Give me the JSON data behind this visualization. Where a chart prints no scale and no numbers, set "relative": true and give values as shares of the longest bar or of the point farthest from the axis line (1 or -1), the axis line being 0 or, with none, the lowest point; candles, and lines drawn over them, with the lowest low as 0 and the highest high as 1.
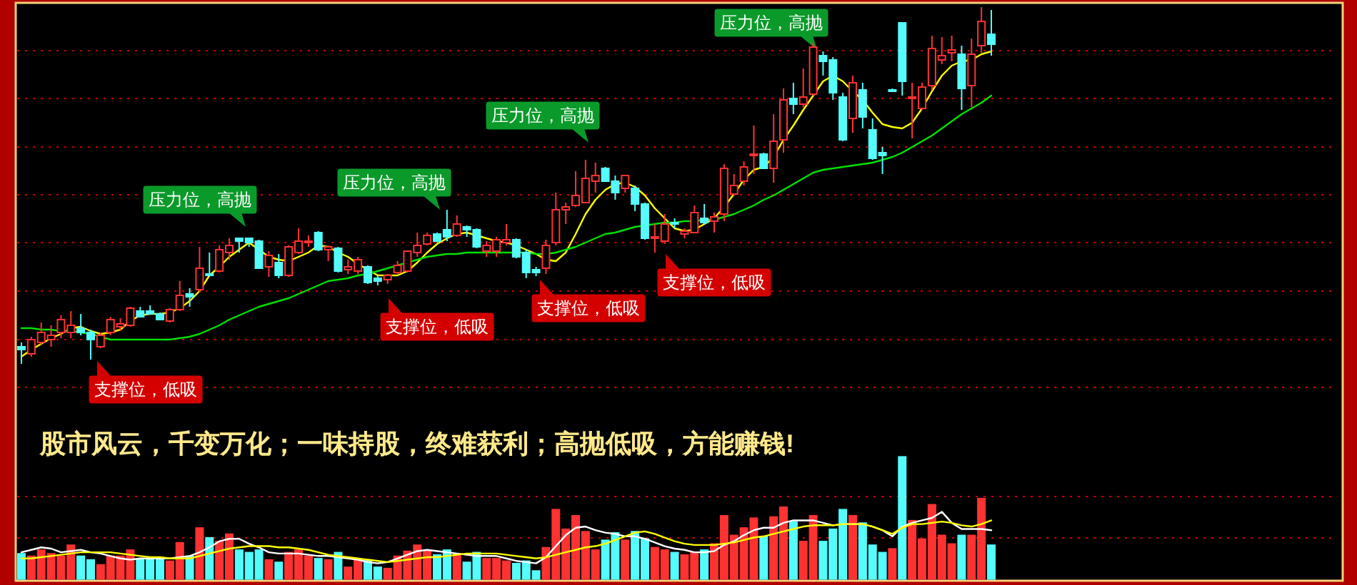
{
  "chart_data": [
    {
      "type": "candlestick",
      "relative": true,
      "ref_lines": [
        {
          "axis": "y",
          "value": 0.878,
          "color": "#c80000",
          "line_style": "dotted"
        },
        {
          "axis": "y",
          "value": 0.744,
          "color": "#c80000",
          "line_style": "dotted"
        },
        {
          "axis": "y",
          "value": 0.608,
          "color": "#c80000",
          "line_style": "dotted"
        },
        {
          "axis": "y",
          "value": 0.474,
          "color": "#c80000",
          "line_style": "dotted"
        },
        {
          "axis": "y",
          "value": 0.34,
          "color": "#c80000",
          "line_style": "dotted"
        },
        {
          "axis": "y",
          "value": 0.204,
          "color": "#c80000",
          "line_style": "dotted"
        },
        {
          "axis": "y",
          "value": 0.068,
          "color": "#c80000",
          "line_style": "dotted"
        },
        {
          "axis": "y",
          "value": -0.066,
          "color": "#c80000",
          "line_style": "dotted"
        }
      ],
      "categories": [
        null,
        null,
        null,
        null,
        null,
        null,
        null,
        null,
        null,
        null,
        null,
        null,
        null,
        null,
        null,
        null,
        null,
        null,
        null,
        null,
        null,
        null,
        null,
        null,
        null,
        null,
        null,
        null,
        null,
        null,
        null,
        null,
        null,
        null,
        null,
        null,
        null,
        null,
        null,
        null,
        null,
        null,
        null,
        null,
        null,
        null,
        null,
        null,
        null,
        null,
        null,
        null,
        null,
        null,
        null,
        null,
        null,
        null,
        null,
        null,
        null,
        null,
        null,
        null,
        null,
        null,
        null,
        null,
        null,
        null,
        null,
        null,
        null,
        null,
        null,
        null,
        null,
        null,
        null,
        null,
        null,
        null,
        null,
        null,
        null,
        null,
        null,
        null,
        null,
        null,
        null,
        null,
        null,
        null,
        null,
        null,
        null,
        null,
        null
      ],
      "ohlc": [
        [
          0.048,
          0.06,
          0,
          0.04
        ],
        [
          0.028,
          0.076,
          0.02,
          0.068
        ],
        [
          0.06,
          0.116,
          0.052,
          0.088
        ],
        [
          0.068,
          0.108,
          0.048,
          0.08
        ],
        [
          0.088,
          0.136,
          0.072,
          0.124
        ],
        [
          0.088,
          0.148,
          0.072,
          0.108
        ],
        [
          0.1,
          0.14,
          0.08,
          0.088
        ],
        [
          0.088,
          0.096,
          0.012,
          0.068
        ],
        [
          0.048,
          0.088,
          0.044,
          0.08
        ],
        [
          0.088,
          0.132,
          0.08,
          0.124
        ],
        [
          0.104,
          0.128,
          0.092,
          0.112
        ],
        [
          0.108,
          0.16,
          0.104,
          0.156
        ],
        [
          0.148,
          0.16,
          0.132,
          0.132
        ],
        [
          0.148,
          0.164,
          0.14,
          0.14
        ],
        [
          0.14,
          0.144,
          0.124,
          0.124
        ],
        [
          0.12,
          0.156,
          0.116,
          0.152
        ],
        [
          0.152,
          0.232,
          0.148,
          0.192
        ],
        [
          0.196,
          0.212,
          0.16,
          0.188
        ],
        [
          0.208,
          0.328,
          0.2,
          0.268
        ],
        [
          0.252,
          0.312,
          0.248,
          0.248
        ],
        [
          0.26,
          0.332,
          0.256,
          0.32
        ],
        [
          0.312,
          0.352,
          0.292,
          0.332
        ],
        [
          0.352,
          0.352,
          0.312,
          0.344
        ],
        [
          0.352,
          0.352,
          0.328,
          0.34
        ],
        [
          0.344,
          0.348,
          0.268,
          0.268
        ],
        [
          0.272,
          0.316,
          0.244,
          0.304
        ],
        [
          0.284,
          0.308,
          0.24,
          0.248
        ],
        [
          0.248,
          0.332,
          0.244,
          0.328
        ],
        [
          0.312,
          0.38,
          0.308,
          0.344
        ],
        [
          0.34,
          0.36,
          0.328,
          0.344
        ],
        [
          0.368,
          0.372,
          0.316,
          0.32
        ],
        [
          0.32,
          0.332,
          0.288,
          0.328
        ],
        [
          0.324,
          0.328,
          0.256,
          0.26
        ],
        [
          0.264,
          0.292,
          0.252,
          0.272
        ],
        [
          0.26,
          0.3,
          0.252,
          0.292
        ],
        [
          0.272,
          0.276,
          0.224,
          0.228
        ],
        [
          0.24,
          0.248,
          0.22,
          0.232
        ],
        [
          0.236,
          0.252,
          0.224,
          0.248
        ],
        [
          0.256,
          0.288,
          0.252,
          0.276
        ],
        [
          0.26,
          0.316,
          0.256,
          0.316
        ],
        [
          0.312,
          0.368,
          0.3,
          0.332
        ],
        [
          0.336,
          0.368,
          0.332,
          0.36
        ],
        [
          0.364,
          0.368,
          0.34,
          0.344
        ],
        [
          0.376,
          0.432,
          0.344,
          0.356
        ],
        [
          0.36,
          0.416,
          0.356,
          0.392
        ],
        [
          0.384,
          0.388,
          0.356,
          0.376
        ],
        [
          0.376,
          0.38,
          0.324,
          0.328
        ],
        [
          0.316,
          0.344,
          0.3,
          0.332
        ],
        [
          0.316,
          0.356,
          0.3,
          0.348
        ],
        [
          0.34,
          0.392,
          0.332,
          0.348
        ],
        [
          0.348,
          0.352,
          0.296,
          0.3
        ],
        [
          0.312,
          0.32,
          0.24,
          0.256
        ],
        [
          0.264,
          0.272,
          0.246,
          0.256
        ],
        [
          0.268,
          0.348,
          0.252,
          0.332
        ],
        [
          0.34,
          0.48,
          0.332,
          0.432
        ],
        [
          0.432,
          0.452,
          0.392,
          0.44
        ],
        [
          0.444,
          0.54,
          0.44,
          0.472
        ],
        [
          0.452,
          0.572,
          0.452,
          0.52
        ],
        [
          0.512,
          0.564,
          0.48,
          0.528
        ],
        [
          0.548,
          0.552,
          0.512,
          0.512
        ],
        [
          0.512,
          0.528,
          0.46,
          0.48
        ],
        [
          0.492,
          0.528,
          0.48,
          0.528
        ],
        [
          0.492,
          0.5,
          0.428,
          0.448
        ],
        [
          0.448,
          0.452,
          0.348,
          0.352
        ],
        [
          0.352,
          0.392,
          0.312,
          0.356
        ],
        [
          0.344,
          0.42,
          0.336,
          0.392
        ],
        [
          0.396,
          0.408,
          0.38,
          0.392
        ],
        [
          0.364,
          0.38,
          0.352,
          0.372
        ],
        [
          0.368,
          0.444,
          0.368,
          0.424
        ],
        [
          0.408,
          0.448,
          0.392,
          0.396
        ],
        [
          0.4,
          0.424,
          0.368,
          0.412
        ],
        [
          0.42,
          0.56,
          0.4,
          0.548
        ],
        [
          0.476,
          0.532,
          0.472,
          0.5
        ],
        [
          0.512,
          0.568,
          0.5,
          0.552
        ],
        [
          0.584,
          0.668,
          0.532,
          0.588
        ],
        [
          0.588,
          0.592,
          0.548,
          0.548
        ],
        [
          0.548,
          0.7,
          0.508,
          0.624
        ],
        [
          0.628,
          0.772,
          0.592,
          0.74
        ],
        [
          0.744,
          0.788,
          0.7,
          0.728
        ],
        [
          0.728,
          0.828,
          0.72,
          0.748
        ],
        [
          0.756,
          0.9,
          0.752,
          0.888
        ],
        [
          0.864,
          0.876,
          0.808,
          0.848
        ],
        [
          0.852,
          0.86,
          0.74,
          0.76
        ],
        [
          0.748,
          0.76,
          0.624,
          0.628
        ],
        [
          0.688,
          0.808,
          0.648,
          0.788
        ],
        [
          0.768,
          0.788,
          0.66,
          0.692
        ],
        [
          0.656,
          0.688,
          0.572,
          0.576
        ],
        [
          0.592,
          0.608,
          0.532,
          0.584
        ],
        [
          0.768,
          0.772,
          0.764,
          0.764
        ],
        [
          0.956,
          0.956,
          0.752,
          0.792
        ],
        [
          0.744,
          0.788,
          0.632,
          0.748
        ],
        [
          0.716,
          0.788,
          0.712,
          0.776
        ],
        [
          0.78,
          0.92,
          0.768,
          0.884
        ],
        [
          0.852,
          0.916,
          0.84,
          0.864
        ],
        [
          0.872,
          0.92,
          0.848,
          0.88
        ],
        [
          0.868,
          0.892,
          0.712,
          0.772
        ],
        [
          0.78,
          0.912,
          0.72,
          0.868
        ],
        [
          0.892,
          1.0,
          0.872,
          0.96
        ],
        [
          0.924,
          0.992,
          0.864,
          0.896
        ]
      ],
      "colors": [
        "#54fcfc",
        "#ff3232",
        "#ff3232",
        "#ff3232",
        "#ff3232",
        "#ff3232",
        "#54fcfc",
        "#54fcfc",
        "#ff3232",
        "#ff3232",
        "#ff3232",
        "#ff3232",
        "#54fcfc",
        "#54fcfc",
        "#54fcfc",
        "#ff3232",
        "#ff3232",
        "#54fcfc",
        "#ff3232",
        "#54fcfc",
        "#ff3232",
        "#ff3232",
        "#54fcfc",
        "#54fcfc",
        "#54fcfc",
        "#ff3232",
        "#54fcfc",
        "#ff3232",
        "#ff3232",
        "#ff3232",
        "#54fcfc",
        "#ff3232",
        "#54fcfc",
        "#ff3232",
        "#ff3232",
        "#54fcfc",
        "#54fcfc",
        "#ff3232",
        "#ff3232",
        "#ff3232",
        "#ff3232",
        "#ff3232",
        "#54fcfc",
        "#54fcfc",
        "#ff3232",
        "#54fcfc",
        "#54fcfc",
        "#ff3232",
        "#ff3232",
        "#ff3232",
        "#54fcfc",
        "#54fcfc",
        "#54fcfc",
        "#ff3232",
        "#ff3232",
        "#ff3232",
        "#ff3232",
        "#ff3232",
        "#ff3232",
        "#54fcfc",
        "#54fcfc",
        "#ff3232",
        "#54fcfc",
        "#54fcfc",
        "#ff3232",
        "#ff3232",
        "#54fcfc",
        "#ff3232",
        "#ff3232",
        "#54fcfc",
        "#ff3232",
        "#ff3232",
        "#ff3232",
        "#ff3232",
        "#ff3232",
        "#54fcfc",
        "#ff3232",
        "#ff3232",
        "#54fcfc",
        "#ff3232",
        "#ff3232",
        "#54fcfc",
        "#54fcfc",
        "#54fcfc",
        "#ff3232",
        "#54fcfc",
        "#54fcfc",
        "#54fcfc",
        "#54fcfc",
        "#54fcfc",
        "#ff3232",
        "#ff3232",
        "#ff3232",
        "#ff3232",
        "#ff3232",
        "#54fcfc",
        "#ff3232",
        "#ff3232",
        "#54fcfc"
      ],
      "series": [
        {
          "type": "line",
          "color": "#ffff00",
          "values": [
            0.02,
            0.04,
            0.056,
            0.072,
            0.084,
            0.1,
            0.104,
            0.092,
            0.084,
            0.088,
            0.096,
            0.12,
            0.136,
            0.14,
            0.14,
            0.144,
            0.156,
            0.176,
            0.204,
            0.248,
            0.272,
            0.3,
            0.32,
            0.34,
            0.32,
            0.3,
            0.292,
            0.288,
            0.3,
            0.312,
            0.332,
            0.328,
            0.312,
            0.3,
            0.28,
            0.264,
            0.248,
            0.248,
            0.248,
            0.26,
            0.284,
            0.312,
            0.336,
            0.352,
            0.364,
            0.368,
            0.36,
            0.352,
            0.344,
            0.34,
            0.332,
            0.32,
            0.308,
            0.292,
            0.288,
            0.312,
            0.364,
            0.42,
            0.46,
            0.488,
            0.504,
            0.508,
            0.496,
            0.472,
            0.436,
            0.408,
            0.38,
            0.372,
            0.376,
            0.392,
            0.408,
            0.44,
            0.476,
            0.516,
            0.544,
            0.552,
            0.58,
            0.628,
            0.668,
            0.712,
            0.752,
            0.792,
            0.808,
            0.792,
            0.764,
            0.74,
            0.704,
            0.672,
            0.664,
            0.66,
            0.676,
            0.716,
            0.764,
            0.808,
            0.836,
            0.848,
            0.852,
            0.868,
            0.876
          ]
        },
        {
          "type": "line",
          "color": "#00e000",
          "values": [
            0.1,
            0.1,
            0.096,
            0.096,
            0.092,
            0.092,
            0.088,
            0.084,
            0.076,
            0.068,
            0.068,
            0.068,
            0.068,
            0.068,
            0.068,
            0.068,
            0.072,
            0.076,
            0.084,
            0.096,
            0.108,
            0.124,
            0.136,
            0.148,
            0.16,
            0.168,
            0.176,
            0.184,
            0.196,
            0.208,
            0.22,
            0.232,
            0.236,
            0.24,
            0.248,
            0.252,
            0.26,
            0.268,
            0.276,
            0.284,
            0.292,
            0.3,
            0.304,
            0.308,
            0.308,
            0.312,
            0.312,
            0.312,
            0.312,
            0.312,
            0.312,
            0.312,
            0.308,
            0.308,
            0.312,
            0.32,
            0.328,
            0.34,
            0.352,
            0.364,
            0.368,
            0.376,
            0.384,
            0.388,
            0.392,
            0.396,
            0.396,
            0.4,
            0.4,
            0.404,
            0.404,
            0.412,
            0.42,
            0.432,
            0.444,
            0.46,
            0.472,
            0.488,
            0.504,
            0.52,
            0.536,
            0.544,
            0.548,
            0.552,
            0.556,
            0.56,
            0.564,
            0.572,
            0.58,
            0.592,
            0.608,
            0.624,
            0.64,
            0.66,
            0.68,
            0.7,
            0.716,
            0.732,
            0.752
          ]
        }
      ],
      "annotations": [
        "支撑位，低吸",
        "压力位，高抛",
        "支撑位，低吸",
        "压力位，高抛",
        "支撑位，低吸",
        "压力位，高抛",
        "支撑位，低吸",
        "压力位，高抛",
        "股市风云，千变万化；一味持股，终难获利；高抛低吸，方能赚钱!"
      ]
    },
    {
      "type": "bar",
      "relative": true,
      "ref_lines": [
        {
          "axis": "y",
          "value": 0.674,
          "color": "#c80000",
          "line_style": "dotted"
        },
        {
          "axis": "y",
          "value": 0.337,
          "color": "#c80000",
          "line_style": "dotted"
        }
      ],
      "categories": [
        null,
        null,
        null,
        null,
        null,
        null,
        null,
        null,
        null,
        null,
        null,
        null,
        null,
        null,
        null,
        null,
        null,
        null,
        null,
        null,
        null,
        null,
        null,
        null,
        null,
        null,
        null,
        null,
        null,
        null,
        null,
        null,
        null,
        null,
        null,
        null,
        null,
        null,
        null,
        null,
        null,
        null,
        null,
        null,
        null,
        null,
        null,
        null,
        null,
        null,
        null,
        null,
        null,
        null,
        null,
        null,
        null,
        null,
        null,
        null,
        null,
        null,
        null,
        null,
        null,
        null,
        null,
        null,
        null,
        null,
        null,
        null,
        null,
        null,
        null,
        null,
        null,
        null,
        null,
        null,
        null,
        null,
        null,
        null,
        null,
        null,
        null,
        null,
        null,
        null,
        null,
        null,
        null,
        null,
        null,
        null,
        null,
        null,
        null
      ],
      "series": [
        {
          "type": "bar",
          "values": [
            0.21,
            0.19,
            0.24,
            0.21,
            0.19,
            0.28,
            0.19,
            0.16,
            0.12,
            0.19,
            0.19,
            0.24,
            0.17,
            0.17,
            0.16,
            0.15,
            0.3,
            0.19,
            0.42,
            0.34,
            0.31,
            0.37,
            0.24,
            0.22,
            0.24,
            0.16,
            0.14,
            0.22,
            0.24,
            0.19,
            0.17,
            0.16,
            0.22,
            0.1,
            0.16,
            0.16,
            0.1,
            0.09,
            0.19,
            0.23,
            0.28,
            0.24,
            0.2,
            0.24,
            0.21,
            0.14,
            0.22,
            0.17,
            0.17,
            0.15,
            0.13,
            0.15,
            0.07,
            0.26,
            0.57,
            0.41,
            0.52,
            0.39,
            0.24,
            0.32,
            0.38,
            0.32,
            0.39,
            0.33,
            0.26,
            0.24,
            0.22,
            0.2,
            0.22,
            0.24,
            0.29,
            0.52,
            0.36,
            0.42,
            0.5,
            0.35,
            0.51,
            0.59,
            0.47,
            0.31,
            0.52,
            0.31,
            0.41,
            0.57,
            0.52,
            0.46,
            0.28,
            0.22,
            0.25,
            1,
            0.48,
            0.33,
            0.61,
            0.36,
            0.29,
            0.36,
            0.36,
            0.66,
            0.28
          ],
          "colors": [
            "#54fcfc",
            "#ff3232",
            "#ff3232",
            "#ff3232",
            "#ff3232",
            "#ff3232",
            "#54fcfc",
            "#54fcfc",
            "#ff3232",
            "#ff3232",
            "#ff3232",
            "#ff3232",
            "#54fcfc",
            "#54fcfc",
            "#54fcfc",
            "#ff3232",
            "#ff3232",
            "#54fcfc",
            "#ff3232",
            "#54fcfc",
            "#ff3232",
            "#ff3232",
            "#54fcfc",
            "#54fcfc",
            "#54fcfc",
            "#ff3232",
            "#54fcfc",
            "#ff3232",
            "#ff3232",
            "#ff3232",
            "#54fcfc",
            "#ff3232",
            "#54fcfc",
            "#ff3232",
            "#ff3232",
            "#54fcfc",
            "#54fcfc",
            "#ff3232",
            "#ff3232",
            "#ff3232",
            "#ff3232",
            "#ff3232",
            "#54fcfc",
            "#54fcfc",
            "#ff3232",
            "#54fcfc",
            "#54fcfc",
            "#ff3232",
            "#ff3232",
            "#ff3232",
            "#54fcfc",
            "#54fcfc",
            "#54fcfc",
            "#ff3232",
            "#ff3232",
            "#ff3232",
            "#ff3232",
            "#ff3232",
            "#ff3232",
            "#54fcfc",
            "#54fcfc",
            "#ff3232",
            "#54fcfc",
            "#54fcfc",
            "#ff3232",
            "#ff3232",
            "#54fcfc",
            "#ff3232",
            "#ff3232",
            "#54fcfc",
            "#ff3232",
            "#ff3232",
            "#ff3232",
            "#ff3232",
            "#ff3232",
            "#54fcfc",
            "#ff3232",
            "#ff3232",
            "#54fcfc",
            "#ff3232",
            "#ff3232",
            "#54fcfc",
            "#54fcfc",
            "#54fcfc",
            "#ff3232",
            "#54fcfc",
            "#54fcfc",
            "#54fcfc",
            "#ff3232",
            "#54fcfc",
            "#ff3232",
            "#ff3232",
            "#ff3232",
            "#ff3232",
            "#ff3232",
            "#54fcfc",
            "#ff3232",
            "#ff3232",
            "#54fcfc"
          ]
        },
        {
          "type": "line",
          "color": "#ffffff",
          "values": [
            0.22,
            0.24,
            0.26,
            0.25,
            0.22,
            0.23,
            0.24,
            0.22,
            0.21,
            0.19,
            0.17,
            0.16,
            0.17,
            0.17,
            0.17,
            0.17,
            0.18,
            0.19,
            0.22,
            0.26,
            0.31,
            0.33,
            0.33,
            0.29,
            0.26,
            0.22,
            0.21,
            0.21,
            0.21,
            0.2,
            0.19,
            0.19,
            0.18,
            0.17,
            0.16,
            0.14,
            0.13,
            0.14,
            0.17,
            0.2,
            0.23,
            0.24,
            0.23,
            0.22,
            0.21,
            0.2,
            0.19,
            0.19,
            0.19,
            0.17,
            0.15,
            0.14,
            0.13,
            0.18,
            0.27,
            0.36,
            0.42,
            0.43,
            0.4,
            0.38,
            0.37,
            0.35,
            0.35,
            0.33,
            0.3,
            0.27,
            0.25,
            0.24,
            0.22,
            0.22,
            0.23,
            0.28,
            0.31,
            0.36,
            0.4,
            0.42,
            0.42,
            0.46,
            0.48,
            0.48,
            0.48,
            0.46,
            0.44,
            0.45,
            0.45,
            0.45,
            0.43,
            0.4,
            0.35,
            0.43,
            0.46,
            0.48,
            0.5,
            0.55,
            0.46,
            0.41,
            0.41,
            0.41,
            0.4
          ]
        },
        {
          "type": "line",
          "color": "#ffff00",
          "values": [
            0.17,
            0.17,
            0.18,
            0.19,
            0.2,
            0.21,
            0.22,
            0.22,
            0.22,
            0.22,
            0.21,
            0.2,
            0.19,
            0.18,
            0.18,
            0.17,
            0.17,
            0.17,
            0.19,
            0.21,
            0.23,
            0.25,
            0.26,
            0.27,
            0.27,
            0.27,
            0.26,
            0.26,
            0.25,
            0.24,
            0.22,
            0.2,
            0.19,
            0.18,
            0.17,
            0.16,
            0.15,
            0.14,
            0.15,
            0.16,
            0.17,
            0.18,
            0.18,
            0.19,
            0.2,
            0.21,
            0.21,
            0.21,
            0.21,
            0.2,
            0.19,
            0.18,
            0.17,
            0.18,
            0.2,
            0.22,
            0.24,
            0.26,
            0.27,
            0.29,
            0.32,
            0.35,
            0.38,
            0.39,
            0.37,
            0.34,
            0.31,
            0.29,
            0.28,
            0.28,
            0.28,
            0.29,
            0.3,
            0.32,
            0.34,
            0.35,
            0.37,
            0.39,
            0.41,
            0.43,
            0.44,
            0.44,
            0.44,
            0.45,
            0.45,
            0.45,
            0.43,
            0.4,
            0.37,
            0.42,
            0.45,
            0.45,
            0.46,
            0.47,
            0.46,
            0.44,
            0.43,
            0.45,
            0.48
          ]
        }
      ]
    }
  ]
}
